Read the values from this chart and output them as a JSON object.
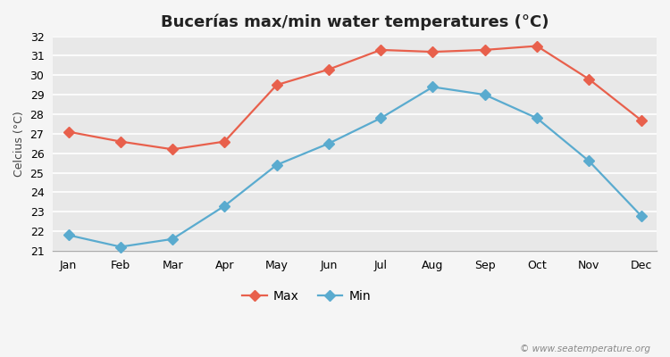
{
  "title": "Bucerías max/min water temperatures (°C)",
  "ylabel": "Celcius (°C)",
  "months": [
    "Jan",
    "Feb",
    "Mar",
    "Apr",
    "May",
    "Jun",
    "Jul",
    "Aug",
    "Sep",
    "Oct",
    "Nov",
    "Dec"
  ],
  "max_values": [
    27.1,
    26.6,
    26.2,
    26.6,
    29.5,
    30.3,
    31.3,
    31.2,
    31.3,
    31.5,
    29.8,
    27.7
  ],
  "min_values": [
    21.8,
    21.2,
    21.6,
    23.3,
    25.4,
    26.5,
    27.8,
    29.4,
    29.0,
    27.8,
    25.6,
    22.8
  ],
  "max_color": "#e8604c",
  "min_color": "#5aabcf",
  "fig_bg_color": "#f5f5f5",
  "plot_bg_color": "#e8e8e8",
  "grid_color": "#ffffff",
  "ylim": [
    21,
    32
  ],
  "yticks": [
    21,
    22,
    23,
    24,
    25,
    26,
    27,
    28,
    29,
    30,
    31,
    32
  ],
  "marker_style": "D",
  "line_width": 1.6,
  "marker_size": 6,
  "watermark": "© www.seatemperature.org",
  "title_fontsize": 13,
  "label_fontsize": 9,
  "tick_fontsize": 9,
  "legend_fontsize": 10
}
